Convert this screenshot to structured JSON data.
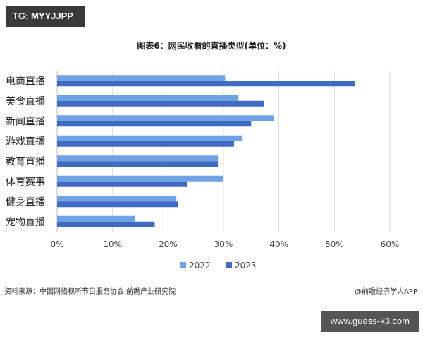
{
  "watermark_top": "TG: MYYJJPP",
  "footer": {
    "source": "资料来源：中国网络视听节目服务协会 前瞻产业研究院",
    "brand": "@前瞻经济学人APP",
    "site": "www.guess-k3.com"
  },
  "chart_data": {
    "type": "bar",
    "orientation": "horizontal",
    "title": "图表6：网民收看的直播类型(单位：%)",
    "categories": [
      "电商直播",
      "美食直播",
      "新闻直播",
      "游戏直播",
      "教育直播",
      "体育赛事",
      "健身直播",
      "宠物直播"
    ],
    "series": [
      {
        "name": "2022",
        "color": "#6fa3e6",
        "values": [
          30.3,
          32.7,
          39.1,
          33.3,
          29.0,
          29.9,
          21.5,
          14.0
        ]
      },
      {
        "name": "2023",
        "color": "#3f6bc0",
        "values": [
          53.7,
          37.3,
          35.0,
          31.9,
          29.0,
          23.4,
          21.8,
          17.6
        ]
      }
    ],
    "xlim": [
      0,
      60
    ],
    "ticks": [
      "0%",
      "10%",
      "20%",
      "30%",
      "40%",
      "50%",
      "60%"
    ],
    "grid": true,
    "legend": "bottom"
  }
}
